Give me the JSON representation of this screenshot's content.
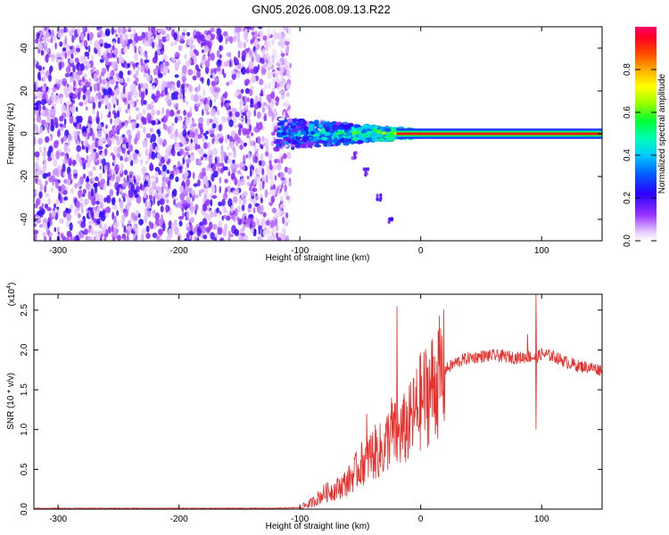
{
  "title": "GN05.2026.008.09.13.R22",
  "chart_data": [
    {
      "type": "heatmap",
      "title": "GN05.2026.008.09.13.R22",
      "xlabel": "Height of straight line (km)",
      "ylabel": "Frequency (Hz)",
      "xlim": [
        -320,
        150
      ],
      "ylim": [
        -50,
        50
      ],
      "x_ticks": [
        -300,
        -200,
        -100,
        0,
        100
      ],
      "y_ticks": [
        -40,
        -20,
        0,
        20,
        40
      ],
      "colorbar": {
        "label": "Normalized spectral amplitude",
        "range": [
          0,
          1
        ],
        "ticks": [
          0.0,
          0.2,
          0.4,
          0.6,
          0.8
        ]
      },
      "description_features": {
        "noise_region_x": [
          -320,
          -120
        ],
        "transition_x": [
          -120,
          0
        ],
        "steady_line_freq": 0,
        "steady_line_x": [
          0,
          150
        ],
        "branch_points": [
          [
            -55,
            -10
          ],
          [
            -45,
            -18
          ],
          [
            -35,
            -30
          ],
          [
            -25,
            -40
          ]
        ]
      }
    },
    {
      "type": "line",
      "xlabel": "Height of straight line (km)",
      "ylabel": "SNR (10 * v/v)",
      "y_multiplier": "(x10",
      "y_multiplier_exp": "4",
      "xlim": [
        -320,
        150
      ],
      "ylim": [
        0,
        2.7
      ],
      "x_ticks": [
        -300,
        -200,
        -100,
        0,
        100
      ],
      "y_ticks": [
        0.0,
        0.5,
        1.0,
        1.5,
        2.0,
        2.5
      ],
      "series": [
        {
          "color": "#e8302c",
          "x": [
            -320,
            -200,
            -120,
            -100,
            -90,
            -80,
            -70,
            -60,
            -50,
            -40,
            -30,
            -25,
            -20,
            -10,
            0,
            10,
            20,
            30,
            40,
            50,
            60,
            70,
            80,
            90,
            95,
            100,
            110,
            120,
            130,
            140,
            150
          ],
          "y": [
            0.01,
            0.01,
            0.01,
            0.02,
            0.08,
            0.2,
            0.25,
            0.35,
            0.55,
            0.7,
            0.75,
            1.0,
            0.9,
            1.05,
            1.35,
            1.55,
            1.75,
            1.85,
            1.9,
            1.92,
            1.93,
            1.92,
            1.9,
            1.92,
            1.9,
            1.95,
            1.92,
            1.85,
            1.8,
            1.78,
            1.75
          ]
        }
      ],
      "spikes": [
        [
          -20,
          2.55
        ],
        [
          -45,
          1.2
        ],
        [
          95,
          2.7
        ],
        [
          95,
          1.0
        ],
        [
          88,
          2.2
        ]
      ]
    }
  ]
}
